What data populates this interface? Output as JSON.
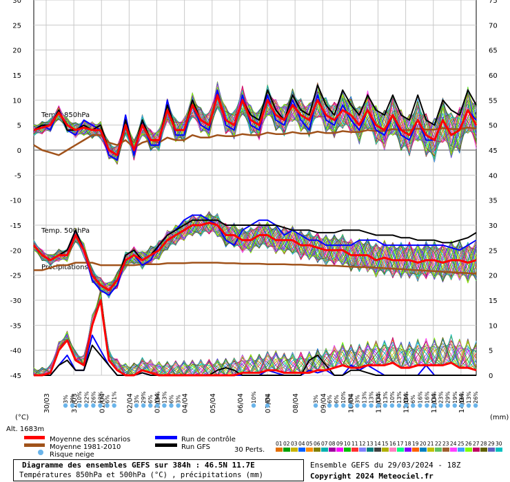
{
  "chart_data": {
    "type": "line",
    "title": "Diagramme des ensembles GEFS sur 384h : 46.5N 11.7E",
    "subtitle": "Températures 850hPa et 500hPa (°C) , précipitations (mm)",
    "run_info": "Ensemble GEFS du 29/03/2024 - 18Z",
    "copyright": "Copyright 2024 Meteociel.fr",
    "altitude": "Alt. 1683m",
    "left_unit": "(°C)",
    "right_unit": "(mm)",
    "left_axis": {
      "ylim": [
        -45,
        30
      ],
      "ticks": [
        "30",
        "25",
        "20",
        "15",
        "10",
        "5",
        "0",
        "-5",
        "-10",
        "-15",
        "-20",
        "-25",
        "-30",
        "-35",
        "-40",
        "-45"
      ]
    },
    "right_axis": {
      "ylim": [
        0,
        75
      ],
      "ticks": [
        "75",
        "70",
        "65",
        "60",
        "55",
        "50",
        "45",
        "40",
        "35",
        "30",
        "25",
        "20",
        "15",
        "10",
        "5",
        "0"
      ]
    },
    "x_labels": [
      "30/03",
      "31/03",
      "01/04",
      "02/04",
      "03/04",
      "04/04",
      "05/04",
      "06/04",
      "07/04",
      "08/04",
      "09/04",
      "10/04",
      "11/04",
      "12/04",
      "13/04",
      "14/04"
    ],
    "panel_labels": {
      "t850": "Temp. 850hPa",
      "t500": "Temp. 500hPa",
      "precip": "Précipitations"
    },
    "legend": {
      "mean": "Moyenne des scénarios",
      "clim": "Moyenne 1981-2010",
      "snow": "Risque neige",
      "control": "Run de contrôle",
      "gfs": "Run GFS",
      "perts_label": "30 Perts.",
      "perts": [
        "01",
        "02",
        "03",
        "04",
        "05",
        "06",
        "07",
        "08",
        "09",
        "10",
        "11",
        "12",
        "13",
        "14",
        "15",
        "16",
        "17",
        "18",
        "19",
        "20",
        "21",
        "22",
        "23",
        "24",
        "25",
        "26",
        "27",
        "28",
        "29",
        "30"
      ],
      "colors": [
        "#e46f00",
        "#00a000",
        "#c8b400",
        "#0060ff",
        "#ff8c00",
        "#808000",
        "#00b0b0",
        "#a000a0",
        "#ff00ff",
        "#00c000",
        "#ff3030",
        "#8080ff",
        "#008080",
        "#404040",
        "#b0b000",
        "#ff80c0",
        "#00ff80",
        "#8000ff",
        "#ff6000",
        "#0080c0",
        "#c0c000",
        "#60c060",
        "#a06030",
        "#ff40ff",
        "#40a0ff",
        "#80ff00",
        "#c00060",
        "#606000",
        "#6060c0",
        "#00c0c0"
      ]
    },
    "snow_risk": [
      {
        "label": "3%"
      },
      {
        "label": "3%"
      },
      {
        "label": "10%"
      },
      {
        "label": "22%"
      },
      {
        "label": "26%"
      },
      {
        "label": "13%"
      },
      {
        "label": "6%"
      },
      {
        "label": "71%"
      },
      {
        "label": "3%"
      },
      {
        "label": "29%"
      },
      {
        "label": "6%"
      },
      {
        "label": "19%"
      },
      {
        "label": "13%"
      },
      {
        "label": "6%"
      },
      {
        "label": "3%"
      },
      {
        "label": "10%"
      },
      {
        "label": "6%"
      },
      {
        "label": "3%"
      },
      {
        "label": "6%"
      },
      {
        "label": "6%"
      },
      {
        "label": "10%"
      },
      {
        "label": "6%"
      },
      {
        "label": "3%"
      },
      {
        "label": "13%"
      },
      {
        "label": "13%"
      },
      {
        "label": "13%"
      },
      {
        "label": "13%"
      },
      {
        "label": "10%"
      },
      {
        "label": "13%"
      },
      {
        "label": "10%"
      },
      {
        "label": "6%"
      },
      {
        "label": "16%"
      },
      {
        "label": "16%"
      },
      {
        "label": "13%"
      },
      {
        "label": "23%"
      },
      {
        "label": "29%"
      },
      {
        "label": "19%"
      },
      {
        "label": "16%"
      },
      {
        "label": "13%"
      },
      {
        "label": "26%"
      }
    ],
    "series_t850": {
      "mean": [
        4,
        4.5,
        5,
        7.5,
        5,
        4,
        4.5,
        4,
        4,
        0,
        -1,
        5,
        0,
        5,
        2,
        2,
        8,
        4,
        4,
        9,
        6,
        5,
        11,
        6,
        5,
        10,
        6,
        5,
        10,
        7,
        6,
        9,
        7,
        6,
        10,
        7,
        6,
        8,
        7,
        5,
        8,
        5,
        4,
        7,
        4,
        3,
        6,
        3,
        2,
        6,
        3,
        4,
        8,
        5
      ],
      "clim": [
        1,
        0,
        -0.5,
        -1,
        0,
        1,
        2,
        3,
        3,
        1.5,
        1,
        2,
        0.5,
        1.5,
        2,
        1.5,
        2.5,
        2,
        2,
        3,
        2.5,
        2.5,
        3,
        2.8,
        2.8,
        3.2,
        3,
        3,
        3.5,
        3.2,
        3.2,
        3.6,
        3.3,
        3.3,
        3.7,
        3.4,
        3.4,
        3.8,
        3.6,
        3.6,
        4,
        3.8,
        3.8,
        4.2,
        4,
        4,
        4.3,
        4.1,
        4.1,
        4.4,
        4.2,
        4.2,
        4.5,
        4.3
      ],
      "control": [
        4,
        5,
        4,
        8,
        4,
        3,
        6,
        5,
        4,
        -1,
        -2,
        7,
        -1,
        6,
        1,
        1,
        10,
        3,
        3,
        9,
        5,
        4,
        12,
        5,
        4,
        11,
        5,
        4,
        11,
        6,
        5,
        10,
        6,
        4,
        11,
        6,
        5,
        9,
        6,
        4,
        8,
        4,
        3,
        7,
        3,
        2,
        6,
        2,
        2,
        6,
        3,
        4,
        8,
        6
      ],
      "gfs": [
        4,
        5,
        5,
        8,
        4,
        4,
        5,
        4,
        5,
        0,
        -1,
        6,
        0,
        6,
        2,
        2,
        9,
        4,
        4,
        10,
        6,
        5,
        11,
        6,
        5,
        10,
        7,
        6,
        12,
        8,
        6,
        11,
        8,
        7,
        13,
        9,
        7,
        12,
        9,
        7,
        11,
        8,
        7,
        11,
        7,
        6,
        11,
        6,
        5,
        10,
        8,
        7,
        12,
        9
      ]
    },
    "series_t500": {
      "mean": [
        -19,
        -21,
        -22,
        -21,
        -21,
        -17,
        -20,
        -25,
        -27,
        -28,
        -26,
        -22,
        -21,
        -22,
        -21,
        -20,
        -18,
        -17,
        -16,
        -15,
        -15,
        -14.5,
        -15,
        -17,
        -17,
        -18,
        -18,
        -17,
        -17,
        -18,
        -18,
        -18,
        -19,
        -19,
        -19.5,
        -20,
        -20,
        -20,
        -21,
        -21,
        -21,
        -22,
        -21.5,
        -22,
        -22,
        -22,
        -22.5,
        -22,
        -22,
        -22.5,
        -22,
        -22,
        -22.5,
        -22
      ],
      "clim": [
        -24,
        -24,
        -23.5,
        -23,
        -23,
        -22.5,
        -22.5,
        -22.5,
        -23,
        -23,
        -23,
        -23,
        -23,
        -22.8,
        -22.8,
        -22.8,
        -22.6,
        -22.6,
        -22.6,
        -22.5,
        -22.5,
        -22.5,
        -22.5,
        -22.6,
        -22.6,
        -22.7,
        -22.7,
        -22.7,
        -22.8,
        -22.8,
        -22.8,
        -22.9,
        -22.9,
        -23,
        -23,
        -23.1,
        -23.1,
        -23.2,
        -23.3,
        -23.4,
        -23.4,
        -23.5,
        -23.6,
        -23.7,
        -23.8,
        -23.9,
        -24,
        -24.1,
        -24.2,
        -24.3,
        -24.4,
        -24.5,
        -24.6,
        -24.7
      ],
      "control": [
        -19,
        -21,
        -22,
        -21,
        -21,
        -16,
        -20,
        -26,
        -28,
        -29,
        -27,
        -22,
        -21,
        -23,
        -22,
        -19,
        -17,
        -16,
        -14,
        -13,
        -13,
        -14,
        -15,
        -18,
        -19,
        -16,
        -15,
        -14,
        -14,
        -15,
        -17,
        -16,
        -17,
        -18,
        -18,
        -19,
        -19,
        -19,
        -19,
        -18,
        -18,
        -18,
        -19,
        -19,
        -19,
        -19,
        -19,
        -19,
        -19,
        -19,
        -19.5,
        -20,
        -19,
        -18
      ],
      "gfs": [
        -19,
        -21,
        -22,
        -21,
        -20,
        -16,
        -20,
        -25,
        -27,
        -28,
        -26,
        -21,
        -20,
        -22,
        -21,
        -19,
        -17,
        -16,
        -15,
        -14,
        -14,
        -14,
        -14,
        -15,
        -15,
        -15,
        -15,
        -15,
        -15,
        -15,
        -15.5,
        -16,
        -16,
        -16,
        -16.5,
        -16.5,
        -16.5,
        -16,
        -16,
        -16,
        -16.5,
        -17,
        -17,
        -17,
        -17.5,
        -17.5,
        -18,
        -18,
        -18,
        -18.5,
        -18.5,
        -18,
        -17.5,
        -16.5
      ]
    },
    "series_precip": {
      "mean": [
        0,
        0,
        0.5,
        5,
        7,
        3,
        2,
        10,
        15,
        3,
        1,
        0,
        0,
        1,
        0.5,
        0,
        0,
        0,
        0,
        0,
        0,
        0,
        0,
        0,
        0,
        0.5,
        0.5,
        0.5,
        1,
        1,
        0.5,
        0.5,
        0.5,
        0.5,
        1,
        1,
        1.5,
        2,
        1.5,
        1.5,
        2,
        2,
        2,
        2.5,
        1.5,
        1.5,
        2,
        2,
        2,
        2,
        2.5,
        1.5,
        1.5,
        1
      ],
      "control": [
        0,
        0,
        0,
        2,
        4,
        1,
        1,
        8,
        5,
        2,
        0,
        0,
        0,
        0.5,
        0,
        0,
        0,
        0,
        0,
        0,
        0,
        0,
        0,
        0,
        0,
        0,
        0,
        0,
        1,
        0.5,
        0,
        0,
        0,
        1,
        0.5,
        1,
        0,
        0,
        2,
        1,
        2,
        1,
        0,
        0,
        0,
        0,
        0,
        2,
        0,
        0,
        0,
        0,
        0,
        0
      ],
      "gfs": [
        0,
        0,
        0,
        2,
        3,
        1,
        1,
        6,
        4,
        2,
        0,
        0,
        0,
        0.5,
        0,
        0,
        0,
        0,
        0,
        0,
        0,
        0,
        1,
        1.5,
        1,
        0,
        0,
        0,
        0,
        0,
        0,
        0,
        0,
        3,
        4,
        2,
        0,
        0,
        1,
        1,
        0.5,
        0,
        0,
        0,
        0,
        0,
        0,
        0,
        0,
        0,
        0,
        0,
        0,
        0
      ]
    }
  }
}
